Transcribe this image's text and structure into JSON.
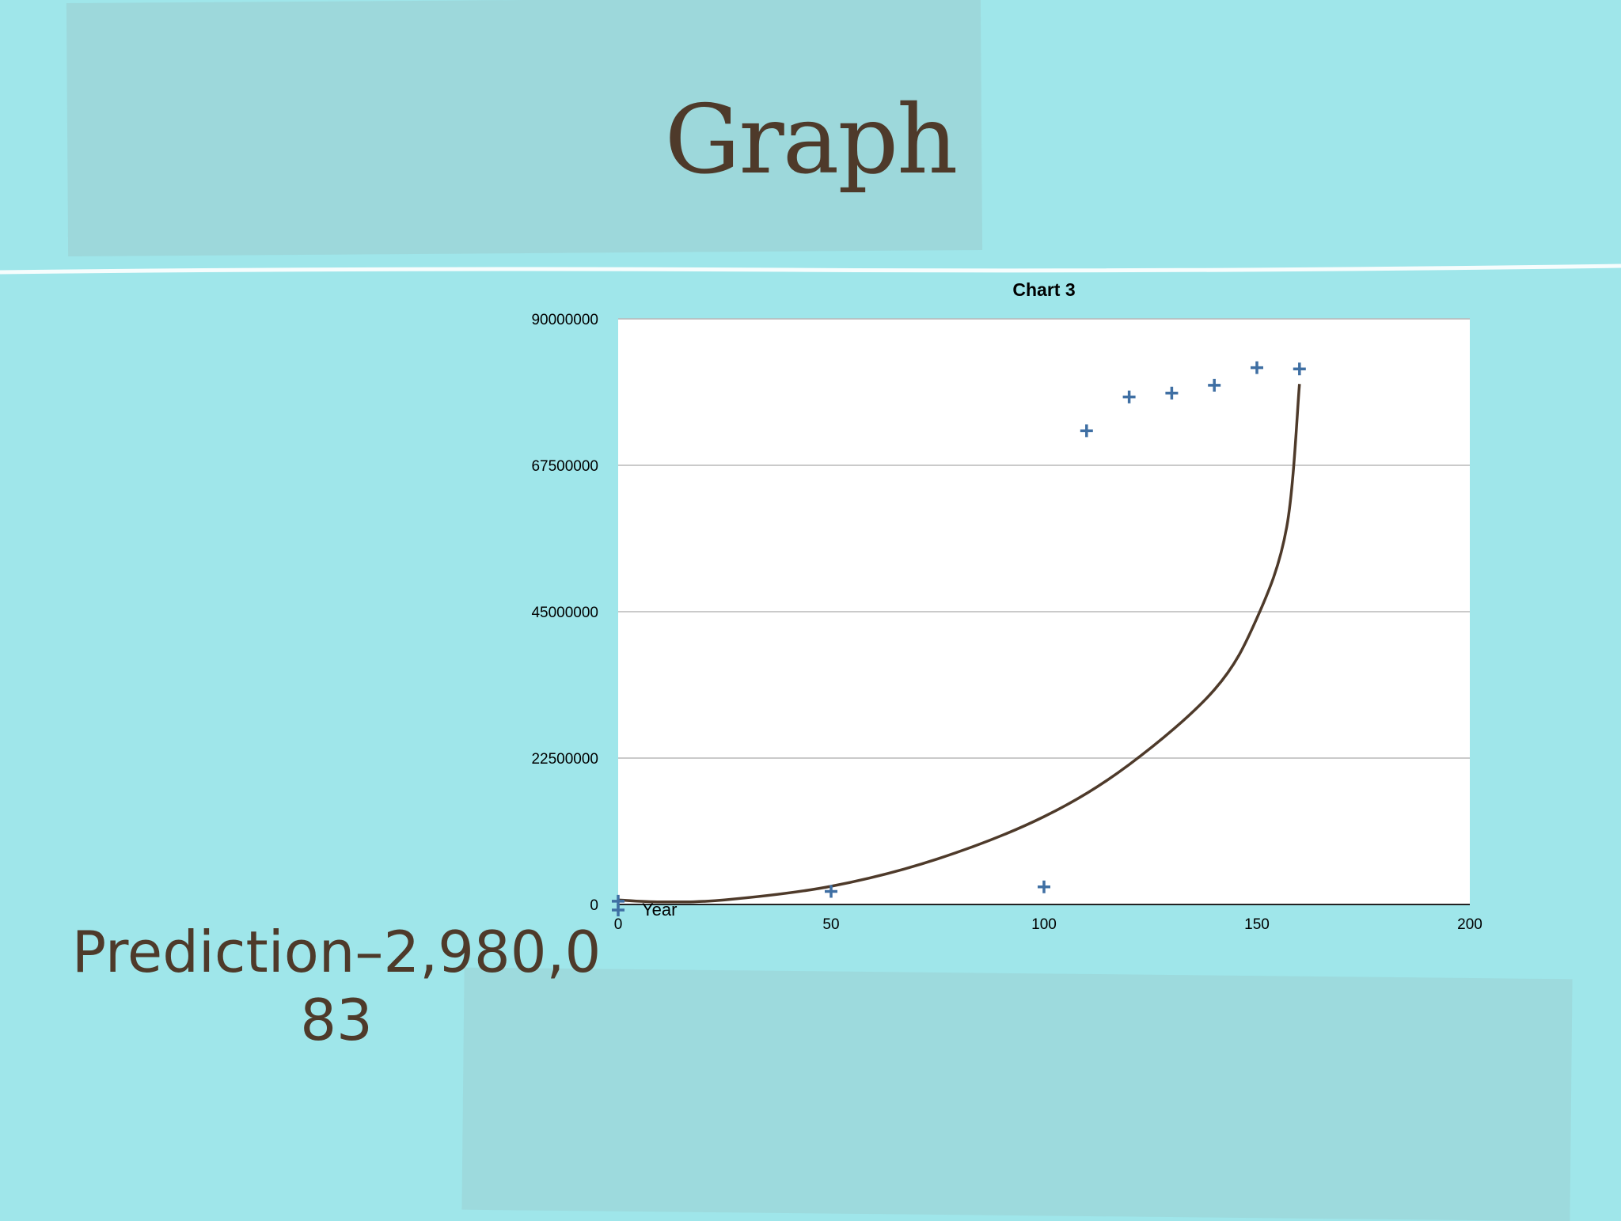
{
  "slide": {
    "title": "Graph",
    "prediction": "Prediction–2,980,083"
  },
  "colors": {
    "background": "#9fe6ea",
    "title": "#4e3a2a",
    "marker": "#3f6fa3",
    "trendline": "#4e3a2a",
    "grid": "#b9b9b9"
  },
  "chart_data": {
    "type": "scatter",
    "title": "Chart 3",
    "xlim": [
      0,
      200
    ],
    "ylim": [
      0,
      90000000
    ],
    "x_ticks": [
      "0",
      "50",
      "100",
      "150",
      "200"
    ],
    "y_ticks": [
      "0",
      "22500000",
      "45000000",
      "67500000",
      "90000000"
    ],
    "grid": "horizontal",
    "legend": {
      "position": "bottom-left",
      "label": "Year"
    },
    "series": [
      {
        "marker": "plus",
        "points": [
          {
            "x": 0,
            "y": 500000
          },
          {
            "x": 50,
            "y": 2000000
          },
          {
            "x": 100,
            "y": 2700000
          },
          {
            "x": 110,
            "y": 72800000
          },
          {
            "x": 120,
            "y": 78000000
          },
          {
            "x": 130,
            "y": 78600000
          },
          {
            "x": 140,
            "y": 79800000
          },
          {
            "x": 150,
            "y": 82500000
          },
          {
            "x": 160,
            "y": 82300000
          }
        ]
      }
    ],
    "trendline": {
      "type": "exponential-curve",
      "points": [
        {
          "x": 0,
          "y": 700000
        },
        {
          "x": 10,
          "y": 400000
        },
        {
          "x": 25,
          "y": 700000
        },
        {
          "x": 50,
          "y": 2800000
        },
        {
          "x": 75,
          "y": 7000000
        },
        {
          "x": 100,
          "y": 13500000
        },
        {
          "x": 120,
          "y": 21500000
        },
        {
          "x": 140,
          "y": 33000000
        },
        {
          "x": 150,
          "y": 44000000
        },
        {
          "x": 157,
          "y": 58000000
        },
        {
          "x": 160,
          "y": 80000000
        }
      ]
    }
  }
}
